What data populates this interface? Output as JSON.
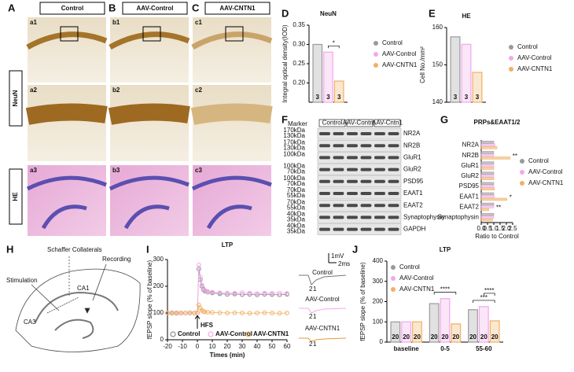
{
  "panel_letters": [
    "A",
    "B",
    "C",
    "D",
    "E",
    "F",
    "G",
    "H",
    "I",
    "J"
  ],
  "images": {
    "columns": [
      "Control",
      "AAV-Control",
      "AAV-CNTN1"
    ],
    "rows": [
      "NeuN",
      "HE"
    ],
    "sublabels": [
      [
        "a1",
        "b1",
        "c1"
      ],
      [
        "a2",
        "b2",
        "c2"
      ],
      [
        "a3",
        "b3",
        "c3"
      ]
    ]
  },
  "blot": {
    "marker": "Marker",
    "lanes": [
      "Control",
      "AAV-Control",
      "AAV-Cntn1"
    ],
    "rows": [
      {
        "name": "NR2A",
        "kda": [
          "170kDa",
          "130kDa"
        ]
      },
      {
        "name": "NR2B",
        "kda": [
          "170kDa",
          "130kDa"
        ]
      },
      {
        "name": "GluR1",
        "kda": [
          "100kDa"
        ]
      },
      {
        "name": "GluR2",
        "kda": [
          "100kDa",
          "70kDa"
        ]
      },
      {
        "name": "PSD95",
        "kda": [
          "100kDa",
          "70kDa"
        ]
      },
      {
        "name": "EAAT1",
        "kda": [
          "70kDa",
          "55kDa"
        ]
      },
      {
        "name": "EAAT2",
        "kda": [
          "70kDa",
          "55kDa"
        ]
      },
      {
        "name": "Synaptophysin",
        "kda": [
          "40kDa",
          "35kDa"
        ]
      },
      {
        "name": "GAPDH",
        "kda": [
          "40kDa",
          "35kDa"
        ]
      }
    ]
  },
  "diagram": {
    "labels": [
      "Schaffer Collaterals",
      "Recording",
      "Stimulation",
      "CA1",
      "CA3"
    ]
  },
  "traces": {
    "labels": [
      "Control",
      "AAV-Control",
      "AAV-CNTN1"
    ],
    "scale_v": "1mV",
    "scale_t": "2ms",
    "peaks": [
      "1",
      "2"
    ]
  },
  "chart_data": [
    {
      "type": "bar",
      "title": "NeuN",
      "y_label": "Integral optical density(IOD)",
      "n": 3,
      "series": [
        {
          "name": "Control",
          "color": "#9a9a9a",
          "values": [
            0.3
          ]
        },
        {
          "name": "AAV-Control",
          "color": "#f3a8ea",
          "values": [
            0.28
          ]
        },
        {
          "name": "AAV-CNTN1",
          "color": "#f0b064",
          "values": [
            0.205
          ]
        }
      ],
      "ylim": [
        0.15,
        0.35
      ],
      "yticks": [
        {
          "value": 0.2,
          "label": "0.20"
        },
        {
          "value": 0.25,
          "label": "0.25"
        },
        {
          "value": 0.3,
          "label": "0.30"
        },
        {
          "value": 0.35,
          "label": "0.35"
        }
      ],
      "significance": [
        {
          "category": 0,
          "from": 1,
          "to": 2,
          "label": "*"
        }
      ]
    },
    {
      "type": "bar",
      "title": "HE",
      "y_label": "Cell No./mm²",
      "n": 3,
      "series": [
        {
          "name": "Control",
          "color": "#9a9a9a",
          "values": [
            157.5
          ]
        },
        {
          "name": "AAV-Control",
          "color": "#f3a8ea",
          "values": [
            155.5
          ]
        },
        {
          "name": "AAV-CNTN1",
          "color": "#f0b064",
          "values": [
            148
          ]
        }
      ],
      "ylim": [
        140,
        160
      ],
      "yticks": [
        140,
        150,
        160
      ],
      "significance": []
    },
    {
      "type": "barh",
      "title": "PRPs&EAAT1/2",
      "x_label": "Ratio to Control",
      "categories": [
        "NR2A",
        "NR2B",
        "GluR1",
        "GluR2",
        "PSD95",
        "EAAT1",
        "EAAT2",
        "Synaptophysin"
      ],
      "series": [
        {
          "name": "Control",
          "color": "#9a9a9a",
          "values": [
            1,
            1,
            1,
            1,
            1,
            1,
            1,
            1
          ]
        },
        {
          "name": "AAV-Control",
          "color": "#f3a8ea",
          "values": [
            1.1,
            1.0,
            1.0,
            1.0,
            1.0,
            1.05,
            1.0,
            1.0
          ]
        },
        {
          "name": "AAV-CNTN1",
          "color": "#f0b064",
          "values": [
            1.25,
            2.3,
            1.0,
            1.0,
            1.05,
            2.05,
            0.6,
            0.9
          ]
        }
      ],
      "xlim": [
        0,
        2.5
      ],
      "xticks": [
        {
          "value": 0,
          "label": "0.0"
        },
        {
          "value": 0.5,
          "label": "0.5"
        },
        {
          "value": 1,
          "label": "1.0"
        },
        {
          "value": 1.5,
          "label": "1.5"
        },
        {
          "value": 2,
          "label": "2.0"
        },
        {
          "value": 2.5,
          "label": "2.5"
        }
      ],
      "annotations": [
        {
          "category": 1,
          "label": "**"
        },
        {
          "category": 5,
          "label": "*"
        },
        {
          "category": 6,
          "label": "**"
        }
      ]
    },
    {
      "type": "line",
      "title": "LTP",
      "x_label": "Times (min)",
      "y_label": "fEPSP slope (% of baseline)",
      "x": [
        -20,
        -17,
        -14,
        -11,
        -8,
        -5,
        -2,
        0,
        1,
        2,
        3,
        4,
        5,
        7,
        10,
        15,
        20,
        25,
        30,
        35,
        40,
        45,
        50,
        55,
        60
      ],
      "series": [
        {
          "name": "Control",
          "color": "#8a8a8a",
          "values": [
            100,
            101,
            99,
            100,
            100,
            101,
            100,
            100,
            265,
            225,
            200,
            188,
            182,
            178,
            175,
            172,
            170,
            171,
            169,
            170,
            168,
            170,
            169,
            168,
            170
          ]
        },
        {
          "name": "AAV-Control",
          "color": "#f3a8ea",
          "values": [
            100,
            100,
            101,
            99,
            100,
            100,
            100,
            100,
            280,
            235,
            205,
            192,
            185,
            180,
            178,
            176,
            175,
            174,
            176,
            175,
            173,
            175,
            174,
            175,
            173
          ]
        },
        {
          "name": "AAV-CNTN1",
          "color": "#f0b064",
          "values": [
            100,
            99,
            100,
            101,
            100,
            100,
            100,
            100,
            130,
            118,
            110,
            106,
            104,
            103,
            102,
            101,
            100,
            101,
            100,
            99,
            100,
            101,
            100,
            99,
            100
          ]
        }
      ],
      "xlim": [
        -20,
        60
      ],
      "xticks": [
        -20,
        -10,
        0,
        10,
        20,
        30,
        40,
        50,
        60
      ],
      "ylim": [
        0,
        300
      ],
      "yticks": [
        0,
        100,
        200,
        300
      ],
      "annotation": {
        "text": "HFS",
        "x": 0
      }
    },
    {
      "type": "bar",
      "title": "LTP",
      "y_label": "fEPSP slope (% of baseline)",
      "n": 20,
      "categories": [
        "baseline",
        "0-5",
        "55-60"
      ],
      "series": [
        {
          "name": "Control",
          "color": "#9a9a9a",
          "values": [
            100,
            190,
            160
          ]
        },
        {
          "name": "AAV-Control",
          "color": "#f3a8ea",
          "values": [
            100,
            215,
            175
          ]
        },
        {
          "name": "AAV-CNTN1",
          "color": "#f0b064",
          "values": [
            100,
            90,
            105
          ]
        }
      ],
      "ylim": [
        0,
        400
      ],
      "yticks": [
        0,
        100,
        200,
        300,
        400
      ],
      "significance": [
        {
          "category": 1,
          "from": 0,
          "to": 2,
          "label": "****"
        },
        {
          "category": 2,
          "from": 0,
          "to": 2,
          "label": "***"
        },
        {
          "category": 2,
          "from": 1,
          "to": 2,
          "label": "****"
        }
      ]
    }
  ]
}
